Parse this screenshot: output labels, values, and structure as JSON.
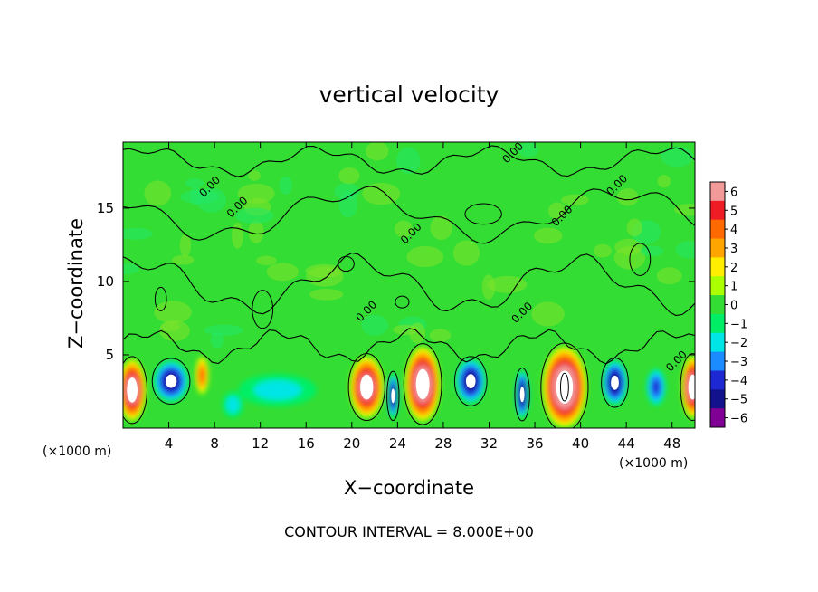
{
  "chart_data": {
    "type": "heatmap",
    "title": "vertical velocity",
    "xlabel": "X−coordinate",
    "ylabel": "Z−coordinate",
    "x_unit_left": "(×1000 m)",
    "x_unit_right": "(×1000 m)",
    "xlim": [
      0,
      50
    ],
    "ylim": [
      0,
      19.5
    ],
    "x_ticks": [
      4,
      8,
      12,
      16,
      20,
      24,
      28,
      32,
      36,
      40,
      44,
      48
    ],
    "x_tick_labels": [
      "4",
      "8",
      "12",
      "16",
      "20",
      "24",
      "28",
      "32",
      "36",
      "40",
      "44",
      "48"
    ],
    "y_ticks": [
      5,
      10,
      15
    ],
    "y_tick_labels": [
      "5",
      "10",
      "15"
    ],
    "contour_interval_text": "CONTOUR INTERVAL = 8.000E+00",
    "contour_labels": [
      {
        "text": "0.00",
        "x": 7.8,
        "z": 16.3
      },
      {
        "text": "0.00",
        "x": 10.2,
        "z": 14.9
      },
      {
        "text": "0.00",
        "x": 25.4,
        "z": 13.1
      },
      {
        "text": "0.00",
        "x": 34.3,
        "z": 18.6
      },
      {
        "text": "0.00",
        "x": 43.4,
        "z": 16.4
      },
      {
        "text": "0.00",
        "x": 38.6,
        "z": 14.3
      },
      {
        "text": "0.00",
        "x": 21.5,
        "z": 7.8
      },
      {
        "text": "0.00",
        "x": 35.1,
        "z": 7.7
      },
      {
        "text": "0.00",
        "x": 48.6,
        "z": 4.4
      }
    ],
    "colorbar": {
      "levels": [
        6,
        5,
        4,
        3,
        2,
        1,
        0,
        -1,
        -2,
        -3,
        -4,
        -5,
        -6
      ],
      "labels": [
        "6",
        "5",
        "4",
        "3",
        "2",
        "1",
        "0",
        "−1",
        "−2",
        "−3",
        "−4",
        "−5",
        "−6"
      ],
      "colors": [
        "#f29a9a",
        "#ee1c24",
        "#ff6a00",
        "#ffa500",
        "#ffee00",
        "#aaff00",
        "#33dd33",
        "#00ee66",
        "#00e5e5",
        "#1a8cff",
        "#1e28d2",
        "#12128c",
        "#800096"
      ]
    },
    "updrafts": [
      {
        "x": 0.8,
        "z": 2.6,
        "amp": 6.8,
        "sx": 1.1,
        "sz": 1.9
      },
      {
        "x": 6.9,
        "z": 3.6,
        "amp": 4.0,
        "sx": 0.55,
        "sz": 1.2
      },
      {
        "x": 21.3,
        "z": 2.8,
        "amp": 6.6,
        "sx": 1.35,
        "sz": 1.9
      },
      {
        "x": 26.2,
        "z": 3.0,
        "amp": 7.2,
        "sx": 1.4,
        "sz": 2.3
      },
      {
        "x": 38.6,
        "z": 2.8,
        "amp": 7.6,
        "sx": 1.75,
        "sz": 2.5
      },
      {
        "x": 49.8,
        "z": 2.8,
        "amp": 6.8,
        "sx": 0.9,
        "sz": 1.9
      }
    ],
    "downdrafts": [
      {
        "x": 4.2,
        "z": 3.2,
        "amp": -5.2,
        "sx": 1.4,
        "sz": 1.3
      },
      {
        "x": 9.6,
        "z": 1.6,
        "amp": -2.2,
        "sx": 0.9,
        "sz": 0.9
      },
      {
        "x": 13.5,
        "z": 2.6,
        "amp": -2.1,
        "sx": 3.4,
        "sz": 1.1
      },
      {
        "x": 23.6,
        "z": 2.2,
        "amp": -5.3,
        "sx": 0.45,
        "sz": 1.4
      },
      {
        "x": 30.4,
        "z": 3.2,
        "amp": -5.3,
        "sx": 1.2,
        "sz": 1.4
      },
      {
        "x": 34.9,
        "z": 2.3,
        "amp": -5.6,
        "sx": 0.55,
        "sz": 1.5
      },
      {
        "x": 43.0,
        "z": 3.1,
        "amp": -5.4,
        "sx": 1.0,
        "sz": 1.4
      },
      {
        "x": 46.6,
        "z": 2.8,
        "amp": -4.0,
        "sx": 0.8,
        "sz": 1.2
      }
    ]
  }
}
